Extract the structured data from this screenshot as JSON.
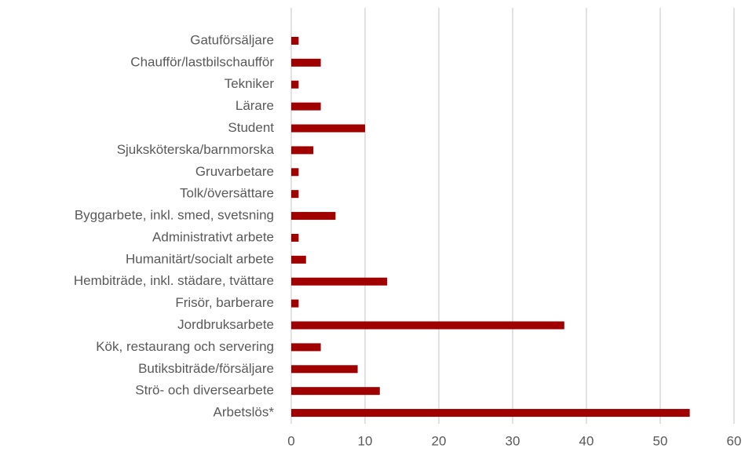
{
  "chart_data": {
    "type": "barh",
    "categories": [
      "Gatuförsäljare",
      "Chaufför/lastbilschaufför",
      "Tekniker",
      "Lärare",
      "Student",
      "Sjuksköterska/barnmorska",
      "Gruvarbetare",
      "Tolk/översättare",
      "Byggarbete, inkl. smed, svetsning",
      "Administrativt arbete",
      "Humanitärt/socialt arbete",
      "Hembiträde, inkl. städare, tvättare",
      "Frisör, barberare",
      "Jordbruksarbete",
      "Kök, restaurang och servering",
      "Butiksbiträde/försäljare",
      "Strö- och diversearbete",
      "Arbetslös*"
    ],
    "values": [
      1,
      4,
      1,
      4,
      10,
      3,
      1,
      1,
      6,
      1,
      2,
      13,
      1,
      37,
      4,
      9,
      12,
      54
    ],
    "color": "#a00000",
    "xlim": [
      0,
      60
    ],
    "xticks": [
      0,
      10,
      20,
      30,
      40,
      50,
      60
    ],
    "grid": true
  }
}
